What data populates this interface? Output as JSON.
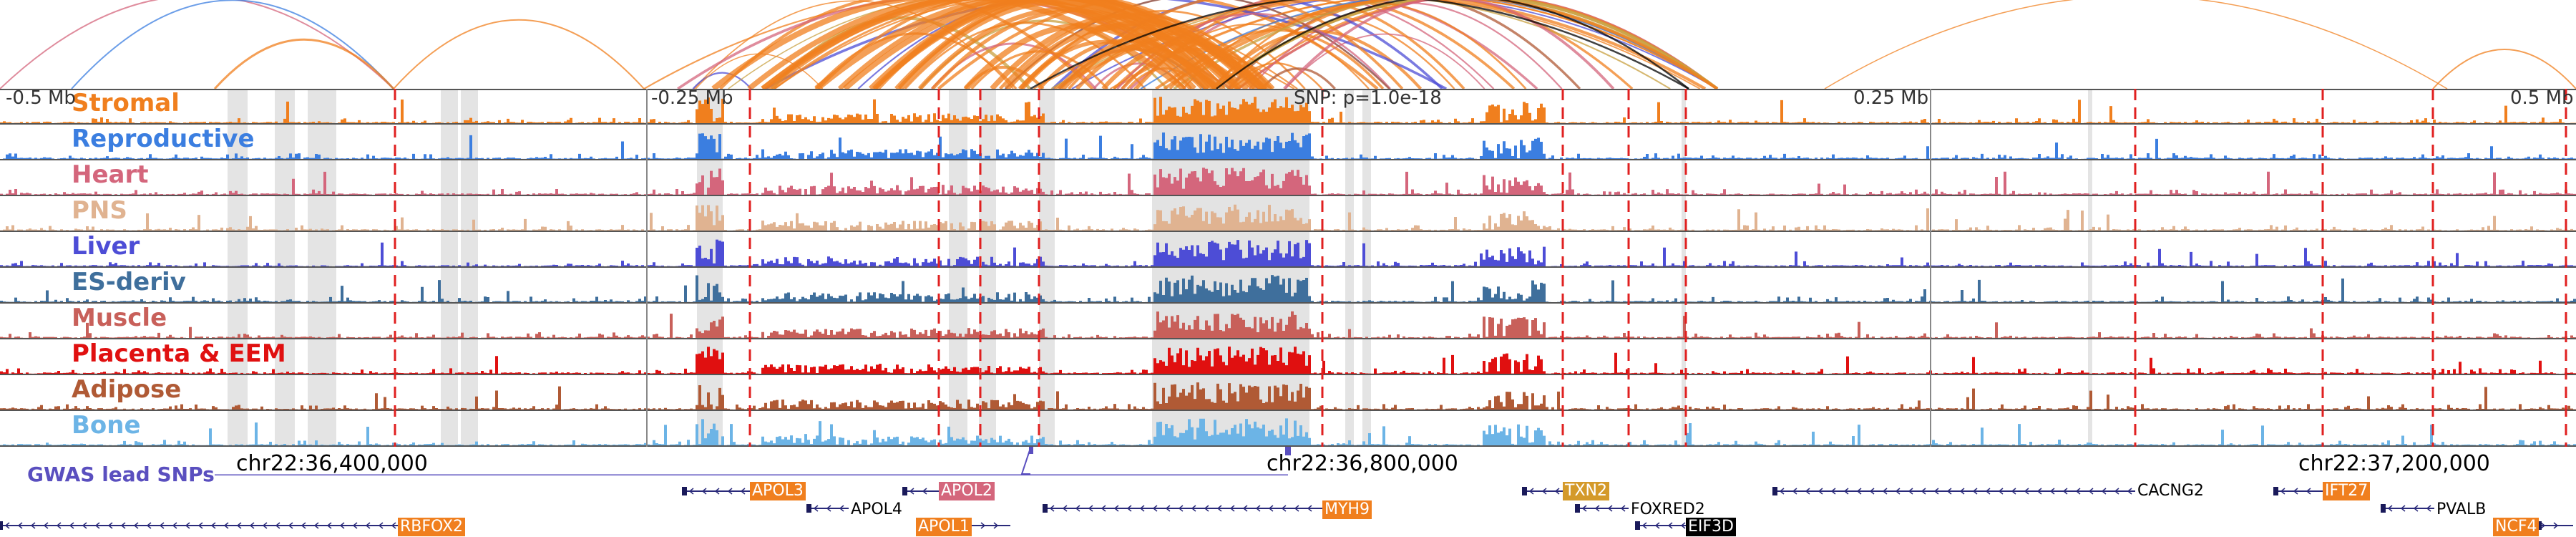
{
  "axis": {
    "ticks": [
      "-0.5 Mb",
      "-0.25 Mb",
      "0.25 Mb",
      "0.5 Mb"
    ],
    "snp_label": "SNP: p=1.0e-18"
  },
  "coordinates": [
    "chr22:36,400,000",
    "chr22:36,800,000",
    "chr22:37,200,000"
  ],
  "gwas_label": "GWAS lead SNPs",
  "tracks": [
    {
      "name": "Stromal",
      "color": "#f07f1e"
    },
    {
      "name": "Reproductive",
      "color": "#3b7ee0"
    },
    {
      "name": "Heart",
      "color": "#d4667c"
    },
    {
      "name": "PNS",
      "color": "#e0b391"
    },
    {
      "name": "Liver",
      "color": "#4d4dd6"
    },
    {
      "name": "ES-deriv",
      "color": "#3f6f9c"
    },
    {
      "name": "Muscle",
      "color": "#c8605a"
    },
    {
      "name": "Placenta & EEM",
      "color": "#e01010"
    },
    {
      "name": "Adipose",
      "color": "#b05a35"
    },
    {
      "name": "Bone",
      "color": "#6cb4e6"
    }
  ],
  "genes": [
    {
      "name": "APOL3",
      "style": "box",
      "color": "#f07f1e"
    },
    {
      "name": "APOL2",
      "style": "box",
      "color": "#d4667c"
    },
    {
      "name": "APOL4",
      "style": "text",
      "color": "#000000"
    },
    {
      "name": "APOL1",
      "style": "box",
      "color": "#f07f1e"
    },
    {
      "name": "MYH9",
      "style": "box",
      "color": "#f07f1e"
    },
    {
      "name": "TXN2",
      "style": "box",
      "color": "#d49a2a"
    },
    {
      "name": "FOXRED2",
      "style": "text",
      "color": "#000000"
    },
    {
      "name": "EIF3D",
      "style": "box",
      "color": "#000000"
    },
    {
      "name": "CACNG2",
      "style": "text",
      "color": "#000000"
    },
    {
      "name": "IFT27",
      "style": "box",
      "color": "#f07f1e"
    },
    {
      "name": "PVALB",
      "style": "text",
      "color": "#000000"
    },
    {
      "name": "NCF4",
      "style": "box",
      "color": "#f07f1e"
    },
    {
      "name": "RBFOX2",
      "style": "box",
      "color": "#f07f1e"
    }
  ]
}
